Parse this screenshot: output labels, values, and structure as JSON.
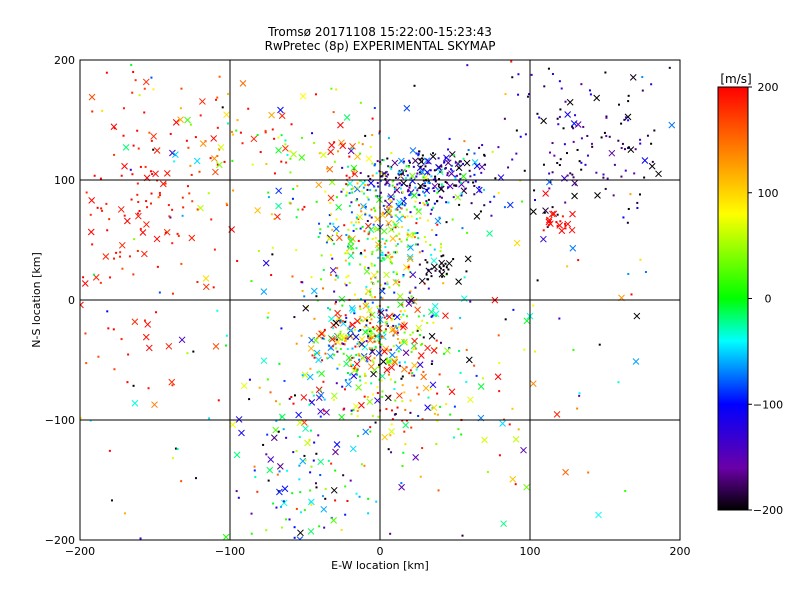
{
  "chart_data": {
    "type": "scatter",
    "title": "Tromsø 20171108 15:22:00-15:23:43",
    "subtitle": "RwPretec (8p) EXPERIMENTAL SKYMAP",
    "xlabel": "E-W location [km]",
    "ylabel": "N-S location [km]",
    "xlim": [
      -200,
      200
    ],
    "ylim": [
      -200,
      200
    ],
    "xticks": [
      -200,
      -100,
      0,
      100,
      200
    ],
    "yticks": [
      -200,
      -100,
      0,
      100,
      200
    ],
    "grid": true,
    "colorbar": {
      "label": "[m/s]",
      "min": -200,
      "max": 200,
      "ticks": [
        200,
        100,
        0,
        -100,
        -200
      ],
      "placement": "right"
    },
    "marker_types": [
      "dot",
      "x"
    ],
    "clusters": [
      {
        "x": 30,
        "y": 100,
        "sx": 22,
        "sy": 14,
        "n": 260,
        "v": -140,
        "vs": 60,
        "xf": 0.18
      },
      {
        "x": -5,
        "y": -30,
        "sx": 20,
        "sy": 18,
        "n": 300,
        "v": 40,
        "vs": 120,
        "xf": 0.3
      },
      {
        "x": 0,
        "y": 55,
        "sx": 22,
        "sy": 30,
        "n": 320,
        "v": 20,
        "vs": 90,
        "xf": 0.15
      },
      {
        "x": -160,
        "y": 80,
        "sx": 28,
        "sy": 70,
        "n": 160,
        "v": 190,
        "vs": 15,
        "xf": 0.2
      },
      {
        "x": 140,
        "y": 130,
        "sx": 28,
        "sy": 35,
        "n": 140,
        "v": -170,
        "vs": 40,
        "xf": 0.12
      },
      {
        "x": -50,
        "y": -140,
        "sx": 22,
        "sy": 40,
        "n": 110,
        "v": -60,
        "vs": 90,
        "xf": 0.3
      },
      {
        "x": 10,
        "y": -75,
        "sx": 35,
        "sy": 25,
        "n": 160,
        "v": 80,
        "vs": 130,
        "xf": 0.25
      },
      {
        "x": 120,
        "y": 65,
        "sx": 6,
        "sy": 4,
        "n": 22,
        "v": 200,
        "vs": 5,
        "xf": 0.3
      },
      {
        "x": 40,
        "y": 25,
        "sx": 8,
        "sy": 6,
        "n": 30,
        "v": -200,
        "vs": 10,
        "xf": 0.3
      },
      {
        "x": -60,
        "y": 120,
        "sx": 40,
        "sy": 30,
        "n": 110,
        "v": 120,
        "vs": 90,
        "xf": 0.25
      },
      {
        "x": 0,
        "y": 0,
        "sx": 120,
        "sy": 110,
        "n": 320,
        "v": 0,
        "vs": 150,
        "xf": 0.3
      }
    ]
  }
}
